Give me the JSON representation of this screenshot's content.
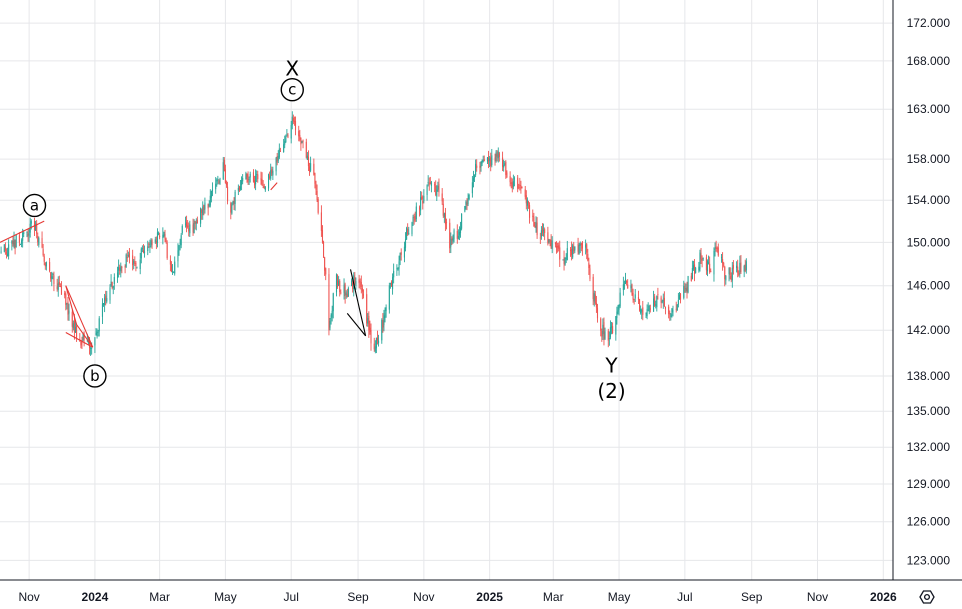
{
  "chart_data": {
    "type": "candlestick",
    "ylim": [
      121.5,
      174.5
    ],
    "y_ticks": [
      "172.000",
      "168.000",
      "163.000",
      "158.000",
      "154.000",
      "150.000",
      "146.000",
      "142.000",
      "138.000",
      "135.000",
      "132.000",
      "129.000",
      "126.000",
      "123.000"
    ],
    "y_tick_values": [
      172,
      168,
      163,
      158,
      154,
      150,
      146,
      142,
      138,
      135,
      132,
      129,
      126,
      123
    ],
    "x_ticks": [
      {
        "label": "Nov",
        "bold": false
      },
      {
        "label": "2024",
        "bold": true
      },
      {
        "label": "Mar",
        "bold": false
      },
      {
        "label": "May",
        "bold": false
      },
      {
        "label": "Jul",
        "bold": false
      },
      {
        "label": "Sep",
        "bold": false
      },
      {
        "label": "Nov",
        "bold": false
      },
      {
        "label": "2025",
        "bold": true
      },
      {
        "label": "Mar",
        "bold": false
      },
      {
        "label": "May",
        "bold": false
      },
      {
        "label": "Jul",
        "bold": false
      },
      {
        "label": "Sep",
        "bold": false
      },
      {
        "label": "Nov",
        "bold": false
      },
      {
        "label": "2026",
        "bold": true
      }
    ],
    "x_tick_dates": [
      "2023-11-01",
      "2024-01-01",
      "2024-03-01",
      "2024-05-01",
      "2024-07-01",
      "2024-09-01",
      "2024-11-01",
      "2025-01-01",
      "2025-03-01",
      "2025-05-01",
      "2025-07-01",
      "2025-09-01",
      "2025-11-01",
      "2026-01-01"
    ],
    "date_range": [
      "2023-10-05",
      "2026-01-10"
    ],
    "price_path": [
      [
        "2023-10-06",
        149.0
      ],
      [
        "2023-10-25",
        150.5
      ],
      [
        "2023-11-05",
        151.8
      ],
      [
        "2023-11-12",
        149.5
      ],
      [
        "2023-11-20",
        147.2
      ],
      [
        "2023-12-05",
        144.5
      ],
      [
        "2023-12-15",
        141.5
      ],
      [
        "2023-12-28",
        140.8
      ],
      [
        "2024-01-03",
        142.0
      ],
      [
        "2024-01-10",
        144.5
      ],
      [
        "2024-01-20",
        147.0
      ],
      [
        "2024-02-01",
        148.5
      ],
      [
        "2024-02-10",
        148.2
      ],
      [
        "2024-02-20",
        150.2
      ],
      [
        "2024-03-05",
        150.8
      ],
      [
        "2024-03-12",
        147.0
      ],
      [
        "2024-03-22",
        151.0
      ],
      [
        "2024-04-01",
        151.5
      ],
      [
        "2024-04-15",
        153.8
      ],
      [
        "2024-04-29",
        157.2
      ],
      [
        "2024-05-05",
        153.0
      ],
      [
        "2024-05-15",
        155.8
      ],
      [
        "2024-05-25",
        156.2
      ],
      [
        "2024-06-05",
        155.5
      ],
      [
        "2024-06-15",
        157.5
      ],
      [
        "2024-06-25",
        159.5
      ],
      [
        "2024-07-03",
        162.0
      ],
      [
        "2024-07-12",
        159.2
      ],
      [
        "2024-07-22",
        156.0
      ],
      [
        "2024-07-30",
        150.5
      ],
      [
        "2024-08-05",
        142.5
      ],
      [
        "2024-08-12",
        146.5
      ],
      [
        "2024-08-22",
        145.0
      ],
      [
        "2024-09-01",
        147.2
      ],
      [
        "2024-09-10",
        142.5
      ],
      [
        "2024-09-16",
        140.0
      ],
      [
        "2024-09-25",
        143.2
      ],
      [
        "2024-10-01",
        146.0
      ],
      [
        "2024-10-15",
        150.5
      ],
      [
        "2024-10-28",
        153.5
      ],
      [
        "2024-11-05",
        155.5
      ],
      [
        "2024-11-15",
        155.0
      ],
      [
        "2024-11-25",
        150.0
      ],
      [
        "2024-12-03",
        151.0
      ],
      [
        "2024-12-10",
        153.5
      ],
      [
        "2024-12-20",
        157.5
      ],
      [
        "2025-01-01",
        157.8
      ],
      [
        "2025-01-09",
        158.3
      ],
      [
        "2025-01-20",
        156.0
      ],
      [
        "2025-02-01",
        154.5
      ],
      [
        "2025-02-12",
        151.5
      ],
      [
        "2025-02-25",
        150.0
      ],
      [
        "2025-03-10",
        148.5
      ],
      [
        "2025-03-20",
        149.5
      ],
      [
        "2025-03-30",
        150.0
      ],
      [
        "2025-04-05",
        146.5
      ],
      [
        "2025-04-12",
        142.5
      ],
      [
        "2025-04-20",
        141.2
      ],
      [
        "2025-04-28",
        142.8
      ],
      [
        "2025-05-05",
        146.5
      ],
      [
        "2025-05-12",
        145.5
      ],
      [
        "2025-05-22",
        143.5
      ],
      [
        "2025-06-05",
        145.0
      ],
      [
        "2025-06-15",
        143.5
      ],
      [
        "2025-06-25",
        144.5
      ],
      [
        "2025-07-05",
        146.5
      ],
      [
        "2025-07-15",
        148.5
      ],
      [
        "2025-07-25",
        147.5
      ],
      [
        "2025-07-31",
        149.8
      ],
      [
        "2025-08-08",
        146.8
      ],
      [
        "2025-08-18",
        147.5
      ],
      [
        "2025-08-27",
        147.6
      ]
    ],
    "trend_lines": [
      {
        "color": "#e53935",
        "points": [
          [
            "2023-10-05",
            150.0
          ],
          [
            "2023-11-15",
            152.0
          ]
        ]
      },
      {
        "color": "#e53935",
        "points": [
          [
            "2023-12-05",
            146.0
          ],
          [
            "2023-12-30",
            140.5
          ]
        ]
      },
      {
        "color": "#e53935",
        "points": [
          [
            "2023-12-05",
            146.0
          ],
          [
            "2023-12-15",
            142.5
          ]
        ]
      },
      {
        "color": "#e53935",
        "points": [
          [
            "2023-12-05",
            141.8
          ],
          [
            "2023-12-30",
            140.5
          ]
        ]
      },
      {
        "color": "#e53935",
        "points": [
          [
            "2023-12-15",
            142.5
          ],
          [
            "2023-12-30",
            140.5
          ]
        ]
      },
      {
        "color": "#e53935",
        "points": [
          [
            "2024-06-12",
            155.0
          ],
          [
            "2024-06-18",
            155.7
          ]
        ]
      },
      {
        "color": "#000000",
        "points": [
          [
            "2024-08-25",
            147.5
          ],
          [
            "2024-09-08",
            141.5
          ]
        ]
      },
      {
        "color": "#000000",
        "points": [
          [
            "2024-08-22",
            143.5
          ],
          [
            "2024-09-08",
            141.5
          ]
        ]
      }
    ],
    "wave_labels": [
      {
        "text": "a",
        "circled": true,
        "date": "2023-11-06",
        "price": 153.5
      },
      {
        "text": "b",
        "circled": true,
        "date": "2024-01-01",
        "price": 138.0
      },
      {
        "text": "c",
        "circled": true,
        "date": "2024-07-02",
        "price": 165.0
      },
      {
        "text": "X",
        "circled": false,
        "date": "2024-07-02",
        "price": 167.2
      },
      {
        "text": "Y",
        "circled": false,
        "date": "2025-04-24",
        "price": 138.9
      },
      {
        "text": "(2)",
        "circled": false,
        "date": "2025-04-24",
        "price": 136.7
      }
    ],
    "colors": {
      "up": "#26a69a",
      "down": "#ef5350",
      "grid": "#e6e7ea",
      "axis": "#131722"
    }
  },
  "toolbar": {
    "settings_icon": "gear-icon"
  }
}
